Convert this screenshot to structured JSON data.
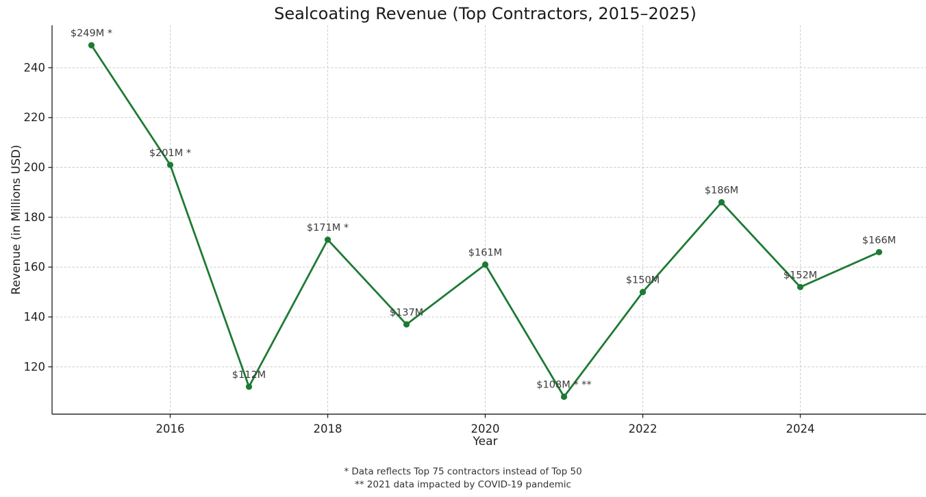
{
  "chart_data": {
    "type": "line",
    "title": "Sealcoating Revenue (Top Contractors, 2015–2025)",
    "xlabel": "Year",
    "ylabel": "Revenue (in Millions USD)",
    "x": [
      2015,
      2016,
      2017,
      2018,
      2019,
      2020,
      2021,
      2022,
      2023,
      2024,
      2025
    ],
    "series": [
      {
        "name": "Revenue",
        "values": [
          249,
          201,
          112,
          171,
          137,
          161,
          108,
          150,
          186,
          152,
          166
        ]
      }
    ],
    "point_labels": [
      "$249M *",
      "$201M *",
      "$112M",
      "$171M *",
      "$137M",
      "$161M",
      "$108M * **",
      "$150M",
      "$186M",
      "$152M",
      "$166M"
    ],
    "xticks": [
      2016,
      2018,
      2020,
      2022,
      2024
    ],
    "yticks": [
      120,
      140,
      160,
      180,
      200,
      220,
      240
    ],
    "xlim": [
      2014.5,
      2025.5
    ],
    "ylim": [
      101,
      257
    ],
    "grid": true,
    "legend": "none",
    "line_color": "#1d7a33",
    "marker": "circle",
    "text_color": "#1f1f1f",
    "annotation_color": "#3a3a3a",
    "footnotes": [
      "* Data reflects Top 75 contractors instead of Top 50",
      "** 2021 data impacted by COVID-19 pandemic"
    ]
  }
}
